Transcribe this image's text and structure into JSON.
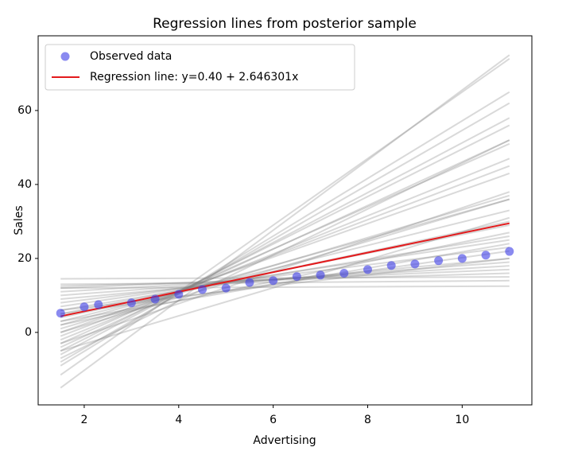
{
  "chart_data": {
    "type": "scatter",
    "title": "Regression lines from posterior sample",
    "x_label": "Advertising",
    "y_label": "Sales",
    "series": [
      {
        "name": "Observed data",
        "color": "#3c3ce6",
        "x": [
          1.5,
          2,
          2.3,
          3,
          3.5,
          4,
          4.5,
          5,
          5.5,
          6,
          6.5,
          7,
          7.5,
          8,
          8.5,
          9,
          9.5,
          10,
          10.5,
          11
        ],
        "values": [
          5.2,
          6.9,
          7.5,
          8,
          9,
          10.3,
          11.6,
          12,
          13.5,
          14,
          15.1,
          15.5,
          16,
          17,
          18.1,
          18.5,
          19.4,
          20,
          20.9,
          21.9
        ]
      },
      {
        "name": "Regression line: y=0.40 + 2.646301x",
        "color": "#e31a1c",
        "x": [
          1.5,
          11
        ],
        "values": [
          4.37,
          29.51
        ]
      }
    ],
    "sample_lines": {
      "color": "#808080",
      "x": [
        1.5,
        11
      ],
      "lines": [
        [
          -15,
          75
        ],
        [
          -11.5,
          74
        ],
        [
          -9,
          65
        ],
        [
          -8,
          62
        ],
        [
          -6,
          58
        ],
        [
          -5,
          56
        ],
        [
          -4,
          52
        ],
        [
          -3,
          51
        ],
        [
          -2,
          47
        ],
        [
          -1,
          45
        ],
        [
          0,
          43
        ],
        [
          -3,
          38
        ],
        [
          1,
          37
        ],
        [
          2,
          36
        ],
        [
          3,
          33
        ],
        [
          -5,
          31
        ],
        [
          4,
          30
        ],
        [
          5,
          29
        ],
        [
          2,
          27
        ],
        [
          6,
          26
        ],
        [
          7,
          25
        ],
        [
          8,
          23
        ],
        [
          5,
          22
        ],
        [
          9,
          20
        ],
        [
          10,
          19
        ],
        [
          11,
          18
        ],
        [
          12,
          17
        ],
        [
          12.5,
          16
        ],
        [
          14.5,
          15
        ],
        [
          13,
          14
        ],
        [
          12,
          12.5
        ],
        [
          -7,
          52
        ],
        [
          0,
          36
        ],
        [
          3,
          24
        ],
        [
          6,
          20
        ]
      ]
    },
    "xlim": [
      1.025,
      11.475
    ],
    "xticks": [
      2,
      4,
      6,
      8,
      10
    ],
    "ylim": [
      -19.6,
      80.2
    ],
    "yticks": [
      0,
      20,
      40,
      60
    ],
    "legend": "upper left"
  }
}
